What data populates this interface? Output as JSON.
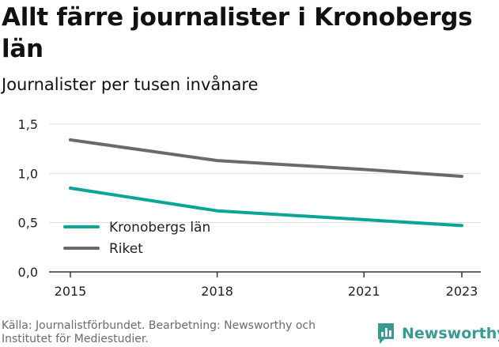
{
  "header": {
    "title": "Allt färre journalister i Kronobergs län",
    "subtitle": "Journalister per tusen invånare"
  },
  "footer": {
    "source": "Källa: Journalistförbundet. Bearbetning: Newsworthy och Institutet för Mediestudier.",
    "brand": "Newsworthy"
  },
  "colors": {
    "kronoberg": "#0aa596",
    "riket": "#6b6870",
    "grid": "#dddddd",
    "brand": "#3a9a92"
  },
  "chart_data": {
    "type": "line",
    "title": "Allt färre journalister i Kronobergs län",
    "subtitle": "Journalister per tusen invånare",
    "xlabel": "",
    "ylabel": "",
    "x": [
      2015,
      2018,
      2021,
      2023
    ],
    "x_tick_labels": [
      "2015",
      "2018",
      "2021",
      "2023"
    ],
    "y_tick_values": [
      0,
      0.5,
      1.0,
      1.5
    ],
    "y_tick_labels": [
      "0,0",
      "0,5",
      "1,0",
      "1,5"
    ],
    "ylim": [
      0,
      1.5
    ],
    "xlim": [
      2015,
      2023
    ],
    "grid": true,
    "legend_position": "bottom-left",
    "series": [
      {
        "name": "Kronobergs län",
        "color": "#0aa596",
        "values": [
          0.85,
          0.62,
          0.53,
          0.47
        ]
      },
      {
        "name": "Riket",
        "color": "#6b6870",
        "values": [
          1.34,
          1.13,
          1.04,
          0.97
        ]
      }
    ]
  }
}
